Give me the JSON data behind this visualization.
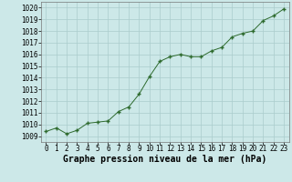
{
  "x": [
    0,
    1,
    2,
    3,
    4,
    5,
    6,
    7,
    8,
    9,
    10,
    11,
    12,
    13,
    14,
    15,
    16,
    17,
    18,
    19,
    20,
    21,
    22,
    23
  ],
  "y": [
    1009.4,
    1009.7,
    1009.2,
    1009.5,
    1010.1,
    1010.2,
    1010.3,
    1011.1,
    1011.5,
    1012.6,
    1014.1,
    1015.4,
    1015.8,
    1016.0,
    1015.8,
    1015.8,
    1016.3,
    1016.6,
    1017.5,
    1017.8,
    1018.0,
    1018.9,
    1019.3,
    1019.9
  ],
  "ylim_min": 1008.5,
  "ylim_max": 1020.5,
  "yticks": [
    1009,
    1010,
    1011,
    1012,
    1013,
    1014,
    1015,
    1016,
    1017,
    1018,
    1019,
    1020
  ],
  "xticks": [
    0,
    1,
    2,
    3,
    4,
    5,
    6,
    7,
    8,
    9,
    10,
    11,
    12,
    13,
    14,
    15,
    16,
    17,
    18,
    19,
    20,
    21,
    22,
    23
  ],
  "xlabel": "Graphe pression niveau de la mer (hPa)",
  "line_color": "#2d6a2d",
  "marker": "+",
  "bg_color": "#cce8e8",
  "grid_color": "#aacccc",
  "tick_label_fontsize": 5.5,
  "xlabel_fontsize": 7.0,
  "xlim_min": -0.5,
  "xlim_max": 23.5
}
